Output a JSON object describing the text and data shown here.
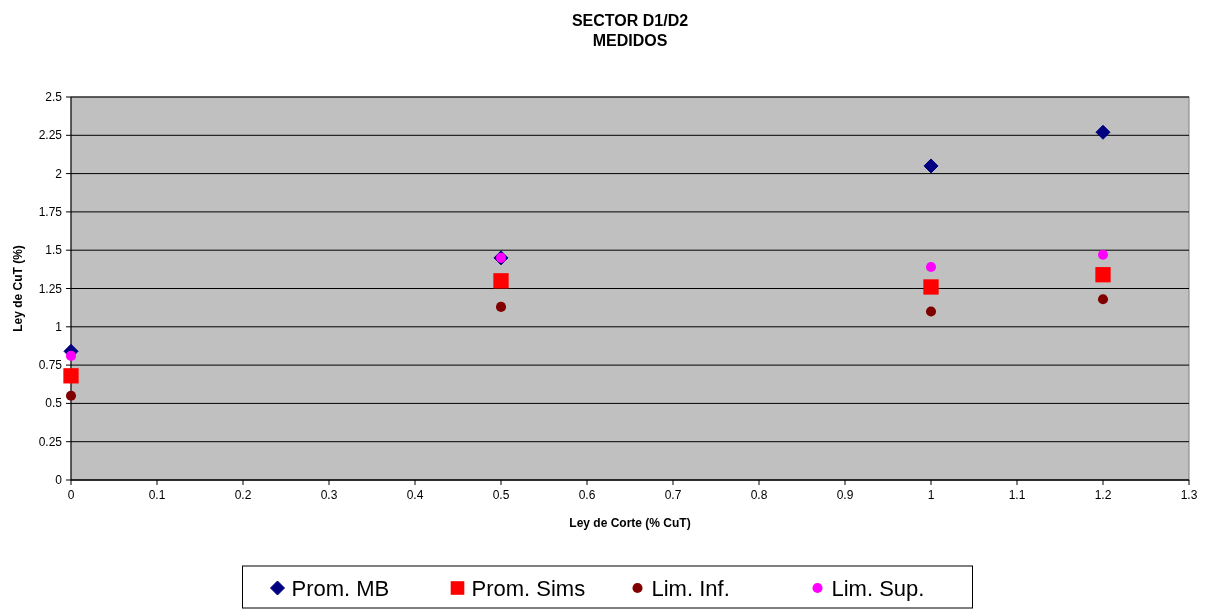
{
  "chart_data": {
    "type": "scatter",
    "title": "SECTOR D1/D2\nMEDIDOS",
    "xlabel": "Ley de Corte (% CuT)",
    "ylabel": "Ley de CuT (%)",
    "xlim": [
      0,
      1.3
    ],
    "xticks": [
      0,
      0.1,
      0.2,
      0.3,
      0.4,
      0.5,
      0.6,
      0.7,
      0.8,
      0.9,
      1,
      1.1,
      1.2,
      1.3
    ],
    "ylim": [
      0,
      2.5
    ],
    "yticks": [
      0,
      0.25,
      0.5,
      0.75,
      1,
      1.25,
      1.5,
      1.75,
      2,
      2.25,
      2.5
    ],
    "grid": "y",
    "legend": "bottom",
    "x": [
      0,
      0.5,
      1,
      1.2
    ],
    "series": [
      {
        "name": "Prom. MB",
        "color": "#000080",
        "marker": "diamond",
        "values": [
          0.84,
          1.45,
          2.05,
          2.27
        ]
      },
      {
        "name": "Prom. Sims",
        "color": "#ff0000",
        "marker": "square",
        "values": [
          0.68,
          1.3,
          1.26,
          1.34
        ]
      },
      {
        "name": "Lim. Inf.",
        "color": "#800000",
        "marker": "circle",
        "values": [
          0.55,
          1.13,
          1.1,
          1.18
        ]
      },
      {
        "name": "Lim. Sup.",
        "color": "#ff00ff",
        "marker": "circle",
        "values": [
          0.81,
          1.45,
          1.39,
          1.47
        ]
      }
    ]
  }
}
